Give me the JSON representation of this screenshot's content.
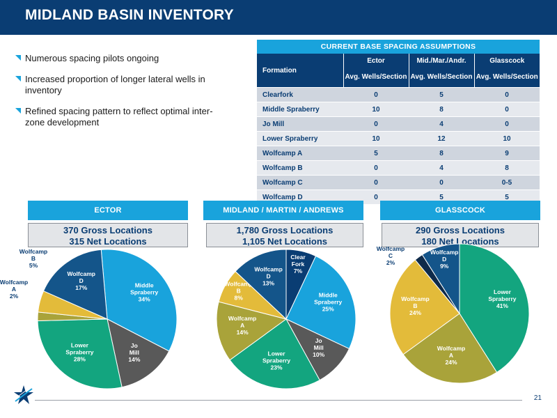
{
  "header": {
    "title": "MIDLAND BASIN INVENTORY"
  },
  "bullets": [
    "Numerous spacing pilots ongoing",
    "Increased proportion of longer lateral wells in inventory",
    "Refined spacing pattern to reflect optimal inter-zone development"
  ],
  "table": {
    "title": "CURRENT BASE SPACING ASSUMPTIONS",
    "formation_header": "Formation",
    "columns": [
      "Ector",
      "Mid./Mar./Andr.",
      "Glasscock"
    ],
    "subheader": "Avg. Wells/Section",
    "rows": [
      {
        "formation": "Clearfork",
        "values": [
          "0",
          "5",
          "0"
        ]
      },
      {
        "formation": "Middle Spraberry",
        "values": [
          "10",
          "8",
          "0"
        ]
      },
      {
        "formation": "Jo Mill",
        "values": [
          "0",
          "4",
          "0"
        ]
      },
      {
        "formation": "Lower Spraberry",
        "values": [
          "10",
          "12",
          "10"
        ]
      },
      {
        "formation": "Wolfcamp A",
        "values": [
          "5",
          "8",
          "9"
        ]
      },
      {
        "formation": "Wolfcamp B",
        "values": [
          "0",
          "4",
          "8"
        ]
      },
      {
        "formation": "Wolfcamp C",
        "values": [
          "0",
          "0",
          "0-5"
        ]
      },
      {
        "formation": "Wolfcamp D",
        "values": [
          "0",
          "5",
          "5"
        ]
      }
    ]
  },
  "regions": [
    {
      "name": "ECTOR",
      "gross": "370 Gross Locations",
      "net": "315 Net Locations"
    },
    {
      "name": "MIDLAND / MARTIN / ANDREWS",
      "gross": "1,780 Gross Locations",
      "net": "1,105 Net Locations"
    },
    {
      "name": "GLASSCOCK",
      "gross": "290 Gross Locations",
      "net": "180 Net Locations"
    }
  ],
  "colors": {
    "navy": "#0a3d73",
    "accent": "#19a3dc",
    "Clearfork": "#0a3d73",
    "Middle Spraberry": "#19a3dc",
    "Jo Mill": "#595959",
    "Lower Spraberry": "#13a57f",
    "Wolfcamp A": "#a9a33a",
    "Wolfcamp B": "#e3bb3a",
    "Wolfcamp C": "#0f2b4a",
    "Wolfcamp D": "#14558a"
  },
  "chart_data": [
    {
      "type": "pie",
      "region": "ECTOR",
      "slices": [
        {
          "label": "Middle Spraberry",
          "value": 34,
          "text": "34%"
        },
        {
          "label": "Jo Mill",
          "value": 14,
          "text": "14%"
        },
        {
          "label": "Lower Spraberry",
          "value": 28,
          "text": "28%"
        },
        {
          "label": "Wolfcamp A",
          "value": 2,
          "text": "2%"
        },
        {
          "label": "Wolfcamp B",
          "value": 5,
          "text": "5%"
        },
        {
          "label": "Wolfcamp D",
          "value": 17,
          "text": "17%"
        }
      ]
    },
    {
      "type": "pie",
      "region": "MIDLAND / MARTIN / ANDREWS",
      "slices": [
        {
          "label": "Clear Fork",
          "value": 7,
          "text": "7%"
        },
        {
          "label": "Middle Spraberry",
          "value": 25,
          "text": "25%"
        },
        {
          "label": "Jo Mill",
          "value": 10,
          "text": "10%"
        },
        {
          "label": "Lower Spraberry",
          "value": 23,
          "text": "23%"
        },
        {
          "label": "Wolfcamp A",
          "value": 14,
          "text": "14%"
        },
        {
          "label": "Wolfcamp B",
          "value": 8,
          "text": "8%"
        },
        {
          "label": "Wolfcamp D",
          "value": 13,
          "text": "13%"
        }
      ]
    },
    {
      "type": "pie",
      "region": "GLASSCOCK",
      "slices": [
        {
          "label": "Lower Spraberry",
          "value": 41,
          "text": "41%"
        },
        {
          "label": "Wolfcamp A",
          "value": 24,
          "text": "24%"
        },
        {
          "label": "Wolfcamp B",
          "value": 24,
          "text": "24%"
        },
        {
          "label": "Wolfcamp C",
          "value": 2,
          "text": "2%"
        },
        {
          "label": "Wolfcamp D",
          "value": 9,
          "text": "9%"
        }
      ]
    }
  ],
  "footer": {
    "page_number": "21"
  }
}
